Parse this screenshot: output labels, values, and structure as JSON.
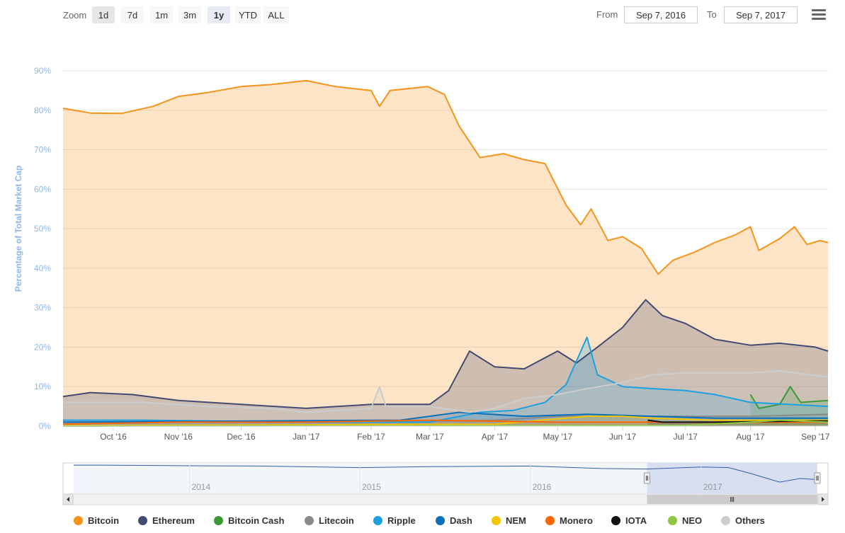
{
  "toolbar": {
    "zoom_label": "Zoom",
    "zoom_buttons": [
      "1d",
      "7d",
      "1m",
      "3m",
      "1y",
      "YTD",
      "ALL"
    ],
    "active_zoom": "1y",
    "from_label": "From",
    "from_value": "Sep 7, 2016",
    "to_label": "To",
    "to_value": "Sep 7, 2017",
    "menu_icon": "hamburger-menu-icon"
  },
  "chart_data": {
    "type": "area",
    "title": "",
    "xlabel": "",
    "ylabel": "Percentage of Total Market Cap",
    "ylim": [
      0,
      90
    ],
    "y_ticks": [
      "0%",
      "10%",
      "20%",
      "30%",
      "40%",
      "50%",
      "60%",
      "70%",
      "80%",
      "90%"
    ],
    "x_ticks": [
      "Oct '16",
      "Nov '16",
      "Dec '16",
      "Jan '17",
      "Feb '17",
      "Mar '17",
      "Apr '17",
      "May '17",
      "Jun '17",
      "Jul '17",
      "Aug '17",
      "Sep '17"
    ],
    "x_range": [
      "2016-09-07",
      "2017-09-07"
    ],
    "grid": true,
    "legend_position": "bottom",
    "series": [
      {
        "name": "Bitcoin",
        "color": "#f7931a",
        "points": [
          [
            "2016-09-07",
            80.5
          ],
          [
            "2016-09-20",
            79.3
          ],
          [
            "2016-10-05",
            79.2
          ],
          [
            "2016-10-20",
            81.0
          ],
          [
            "2016-11-01",
            83.5
          ],
          [
            "2016-11-15",
            84.5
          ],
          [
            "2016-12-01",
            86.0
          ],
          [
            "2016-12-15",
            86.5
          ],
          [
            "2017-01-01",
            87.5
          ],
          [
            "2017-01-15",
            86.0
          ],
          [
            "2017-02-01",
            85.0
          ],
          [
            "2017-02-05",
            81.0
          ],
          [
            "2017-02-10",
            85.0
          ],
          [
            "2017-02-28",
            86.0
          ],
          [
            "2017-03-08",
            84.0
          ],
          [
            "2017-03-15",
            76.0
          ],
          [
            "2017-03-25",
            68.0
          ],
          [
            "2017-04-05",
            69.0
          ],
          [
            "2017-04-15",
            67.5
          ],
          [
            "2017-04-25",
            66.5
          ],
          [
            "2017-05-05",
            56.0
          ],
          [
            "2017-05-12",
            51.0
          ],
          [
            "2017-05-17",
            55.0
          ],
          [
            "2017-05-25",
            47.0
          ],
          [
            "2017-06-01",
            48.0
          ],
          [
            "2017-06-10",
            45.0
          ],
          [
            "2017-06-18",
            38.5
          ],
          [
            "2017-06-25",
            42.0
          ],
          [
            "2017-07-05",
            44.0
          ],
          [
            "2017-07-15",
            46.5
          ],
          [
            "2017-07-25",
            48.5
          ],
          [
            "2017-08-01",
            50.5
          ],
          [
            "2017-08-05",
            44.5
          ],
          [
            "2017-08-15",
            47.5
          ],
          [
            "2017-08-22",
            50.5
          ],
          [
            "2017-08-28",
            46.0
          ],
          [
            "2017-09-03",
            47.0
          ],
          [
            "2017-09-07",
            46.5
          ]
        ]
      },
      {
        "name": "Ethereum",
        "color": "#434a73",
        "points": [
          [
            "2016-09-07",
            7.5
          ],
          [
            "2016-09-20",
            8.5
          ],
          [
            "2016-10-10",
            8.0
          ],
          [
            "2016-11-01",
            6.5
          ],
          [
            "2016-12-01",
            5.5
          ],
          [
            "2017-01-01",
            4.5
          ],
          [
            "2017-02-01",
            5.5
          ],
          [
            "2017-03-01",
            5.5
          ],
          [
            "2017-03-10",
            9.0
          ],
          [
            "2017-03-20",
            19.0
          ],
          [
            "2017-04-01",
            15.0
          ],
          [
            "2017-04-15",
            14.5
          ],
          [
            "2017-05-01",
            19.0
          ],
          [
            "2017-05-10",
            16.0
          ],
          [
            "2017-05-20",
            20.0
          ],
          [
            "2017-06-01",
            25.0
          ],
          [
            "2017-06-12",
            32.0
          ],
          [
            "2017-06-20",
            28.0
          ],
          [
            "2017-07-01",
            26.0
          ],
          [
            "2017-07-15",
            22.0
          ],
          [
            "2017-08-01",
            20.5
          ],
          [
            "2017-08-15",
            21.0
          ],
          [
            "2017-09-01",
            20.0
          ],
          [
            "2017-09-07",
            19.0
          ]
        ]
      },
      {
        "name": "Bitcoin Cash",
        "color": "#3b9a35",
        "points": [
          [
            "2017-08-01",
            8.0
          ],
          [
            "2017-08-05",
            4.5
          ],
          [
            "2017-08-15",
            5.5
          ],
          [
            "2017-08-20",
            10.0
          ],
          [
            "2017-08-25",
            6.0
          ],
          [
            "2017-09-07",
            6.5
          ]
        ]
      },
      {
        "name": "Litecoin",
        "color": "#8a8a8a",
        "points": [
          [
            "2016-09-07",
            1.0
          ],
          [
            "2017-03-01",
            1.2
          ],
          [
            "2017-04-01",
            1.5
          ],
          [
            "2017-05-01",
            2.5
          ],
          [
            "2017-06-01",
            2.5
          ],
          [
            "2017-07-01",
            2.5
          ],
          [
            "2017-08-01",
            2.5
          ],
          [
            "2017-09-07",
            3.0
          ]
        ]
      },
      {
        "name": "Ripple",
        "color": "#1ba1e2",
        "points": [
          [
            "2016-09-07",
            1.5
          ],
          [
            "2016-10-15",
            1.5
          ],
          [
            "2017-01-01",
            1.0
          ],
          [
            "2017-03-01",
            1.0
          ],
          [
            "2017-03-25",
            3.5
          ],
          [
            "2017-04-10",
            4.0
          ],
          [
            "2017-04-25",
            6.0
          ],
          [
            "2017-05-05",
            10.5
          ],
          [
            "2017-05-15",
            22.5
          ],
          [
            "2017-05-20",
            13.0
          ],
          [
            "2017-06-01",
            10.0
          ],
          [
            "2017-06-15",
            9.5
          ],
          [
            "2017-07-01",
            9.0
          ],
          [
            "2017-07-15",
            8.0
          ],
          [
            "2017-08-01",
            6.0
          ],
          [
            "2017-09-07",
            5.0
          ]
        ]
      },
      {
        "name": "Dash",
        "color": "#0d6fb8",
        "points": [
          [
            "2016-09-07",
            1.0
          ],
          [
            "2017-02-15",
            1.5
          ],
          [
            "2017-03-15",
            3.5
          ],
          [
            "2017-04-15",
            2.5
          ],
          [
            "2017-05-15",
            3.0
          ],
          [
            "2017-06-15",
            2.5
          ],
          [
            "2017-07-15",
            2.0
          ],
          [
            "2017-09-07",
            2.0
          ]
        ]
      },
      {
        "name": "NEM",
        "color": "#f5c500",
        "points": [
          [
            "2016-09-07",
            0.1
          ],
          [
            "2017-04-01",
            0.5
          ],
          [
            "2017-05-15",
            2.5
          ],
          [
            "2017-06-01",
            2.5
          ],
          [
            "2017-06-15",
            2.0
          ],
          [
            "2017-07-15",
            1.5
          ],
          [
            "2017-09-07",
            1.5
          ]
        ]
      },
      {
        "name": "Monero",
        "color": "#ff6600",
        "points": [
          [
            "2016-09-07",
            0.5
          ],
          [
            "2016-11-01",
            1.0
          ],
          [
            "2017-01-01",
            1.0
          ],
          [
            "2017-03-01",
            1.5
          ],
          [
            "2017-05-01",
            1.0
          ],
          [
            "2017-09-07",
            1.0
          ]
        ]
      },
      {
        "name": "IOTA",
        "color": "#111111",
        "points": [
          [
            "2017-06-13",
            1.5
          ],
          [
            "2017-06-20",
            1.0
          ],
          [
            "2017-07-15",
            1.0
          ],
          [
            "2017-08-15",
            1.2
          ],
          [
            "2017-09-07",
            1.3
          ]
        ]
      },
      {
        "name": "NEO",
        "color": "#8ec63f",
        "points": [
          [
            "2016-09-07",
            0.0
          ],
          [
            "2017-07-01",
            0.2
          ],
          [
            "2017-08-01",
            1.0
          ],
          [
            "2017-08-15",
            1.5
          ],
          [
            "2017-09-07",
            1.0
          ]
        ]
      },
      {
        "name": "Others",
        "color": "#cccccc",
        "points": [
          [
            "2016-09-07",
            6.0
          ],
          [
            "2016-10-15",
            6.0
          ],
          [
            "2016-11-15",
            5.0
          ],
          [
            "2016-12-15",
            4.5
          ],
          [
            "2017-01-01",
            3.5
          ],
          [
            "2017-02-01",
            4.5
          ],
          [
            "2017-02-05",
            10.0
          ],
          [
            "2017-02-08",
            5.0
          ],
          [
            "2017-03-01",
            5.0
          ],
          [
            "2017-03-20",
            3.5
          ],
          [
            "2017-04-01",
            4.5
          ],
          [
            "2017-04-15",
            7.0
          ],
          [
            "2017-05-01",
            8.0
          ],
          [
            "2017-05-15",
            9.5
          ],
          [
            "2017-06-01",
            11.0
          ],
          [
            "2017-06-15",
            13.0
          ],
          [
            "2017-07-01",
            13.5
          ],
          [
            "2017-07-15",
            13.5
          ],
          [
            "2017-08-01",
            13.5
          ],
          [
            "2017-08-15",
            14.0
          ],
          [
            "2017-09-07",
            12.5
          ]
        ]
      }
    ],
    "navigator": {
      "year_labels": [
        "2014",
        "2015",
        "2016",
        "2017"
      ],
      "x_range": [
        "2013-04-28",
        "2017-09-07"
      ],
      "points": [
        [
          "2013-04-28",
          93
        ],
        [
          "2013-07-01",
          93
        ],
        [
          "2014-01-01",
          91
        ],
        [
          "2014-06-01",
          90
        ],
        [
          "2015-01-01",
          85
        ],
        [
          "2015-06-01",
          88
        ],
        [
          "2016-01-01",
          90
        ],
        [
          "2016-06-01",
          82
        ],
        [
          "2016-09-07",
          80.5
        ],
        [
          "2017-01-01",
          87
        ],
        [
          "2017-03-01",
          85
        ],
        [
          "2017-04-15",
          67
        ],
        [
          "2017-06-18",
          38.5
        ],
        [
          "2017-08-01",
          50
        ],
        [
          "2017-09-07",
          46.5
        ]
      ],
      "selected_range": [
        "2016-09-07",
        "2017-09-07"
      ]
    }
  }
}
